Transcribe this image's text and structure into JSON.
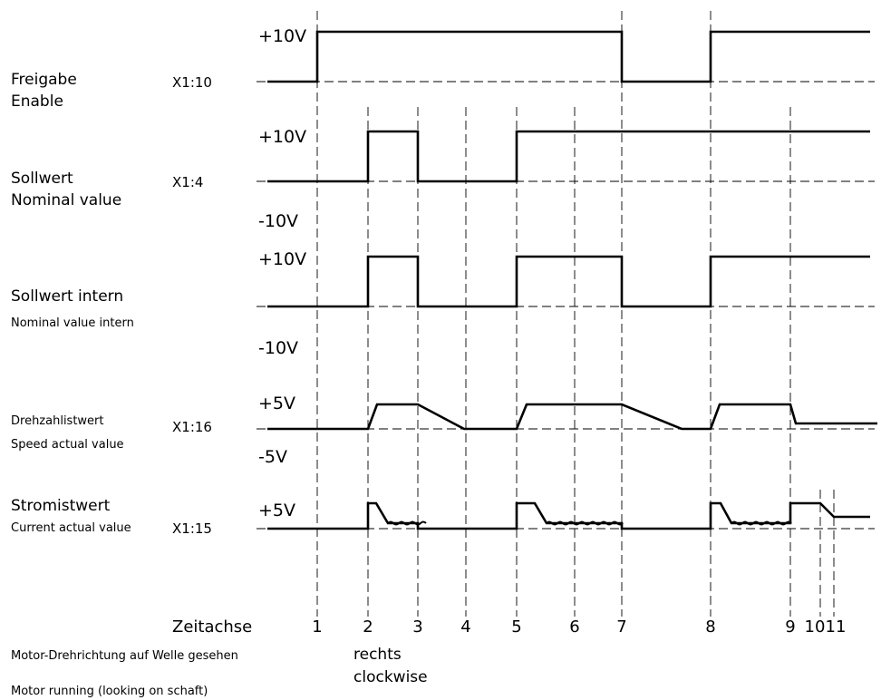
{
  "signals": [
    {
      "name_de": "Freigabe",
      "name_en": "Enable",
      "terminal": "X1:10",
      "level_labels": [
        "+10V"
      ]
    },
    {
      "name_de": "Sollwert",
      "name_en": "Nominal value",
      "terminal": "X1:4",
      "level_labels": [
        "+10V",
        "-10V"
      ]
    },
    {
      "name_de": "Sollwert intern",
      "name_en": "Nominal value intern",
      "terminal": "",
      "level_labels": [
        "+10V",
        "-10V"
      ]
    },
    {
      "name_de": "Drehzahlistwert",
      "name_en": "Speed actual value",
      "terminal": "X1:16",
      "level_labels": [
        "+5V",
        "-5V"
      ]
    },
    {
      "name_de": "Stromistwert",
      "name_en": "Current actual value",
      "terminal": "X1:15",
      "level_labels": [
        "+5V"
      ]
    }
  ],
  "time_axis": {
    "label": "Zeitachse",
    "ticks": [
      "1",
      "2",
      "3",
      "4",
      "5",
      "6",
      "7",
      "8",
      "9",
      "10",
      "11"
    ]
  },
  "direction": {
    "label_de": "Motor-Drehrichtung auf Welle gesehen",
    "label_en": "Motor running (looking on schaft)",
    "value_de": "rechts",
    "value_en": "clockwise"
  }
}
